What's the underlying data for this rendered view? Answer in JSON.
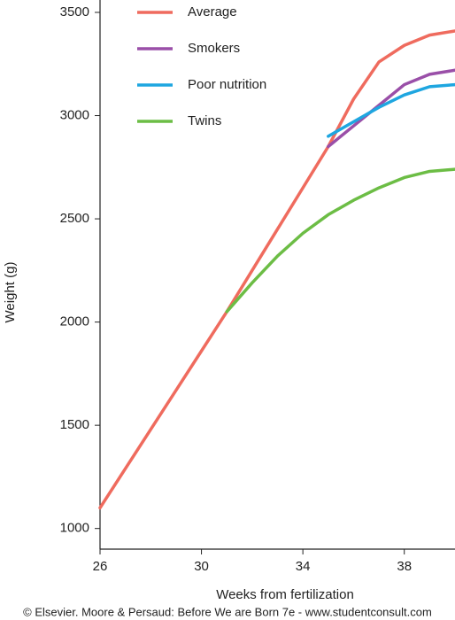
{
  "chart_data": {
    "type": "line",
    "x_label": "Weeks from fertilization",
    "y_label": "Weight (g)",
    "credit": "© Elsevier. Moore & Persaud: Before We are Born 7e - www.studentconsult.com",
    "x": [
      26,
      27,
      28,
      29,
      30,
      31,
      32,
      33,
      34,
      35,
      36,
      37,
      38,
      39,
      40
    ],
    "series": [
      {
        "name": "Average",
        "color": "#ef6b5e",
        "values": [
          1100,
          1290,
          1480,
          1670,
          1860,
          2050,
          2250,
          2450,
          2650,
          2850,
          3080,
          3260,
          3340,
          3390,
          3410
        ]
      },
      {
        "name": "Smokers",
        "color": "#9a4fa8",
        "values": [
          null,
          null,
          null,
          null,
          null,
          null,
          null,
          null,
          null,
          2850,
          2950,
          3050,
          3150,
          3200,
          3220
        ]
      },
      {
        "name": "Poor nutrition",
        "color": "#1ea6e0",
        "values": [
          null,
          null,
          null,
          null,
          null,
          null,
          null,
          null,
          null,
          2900,
          2970,
          3040,
          3100,
          3140,
          3150
        ]
      },
      {
        "name": "Twins",
        "color": "#6cbd45",
        "values": [
          null,
          null,
          null,
          null,
          null,
          2050,
          2190,
          2320,
          2430,
          2520,
          2590,
          2650,
          2700,
          2730,
          2740
        ]
      }
    ],
    "xlim": [
      26,
      40
    ],
    "xticks": [
      26,
      30,
      34,
      38
    ],
    "ylim": [
      900,
      3560
    ],
    "yticks": [
      1000,
      1500,
      2000,
      2500,
      3000,
      3500
    ],
    "legend": "upper left"
  }
}
